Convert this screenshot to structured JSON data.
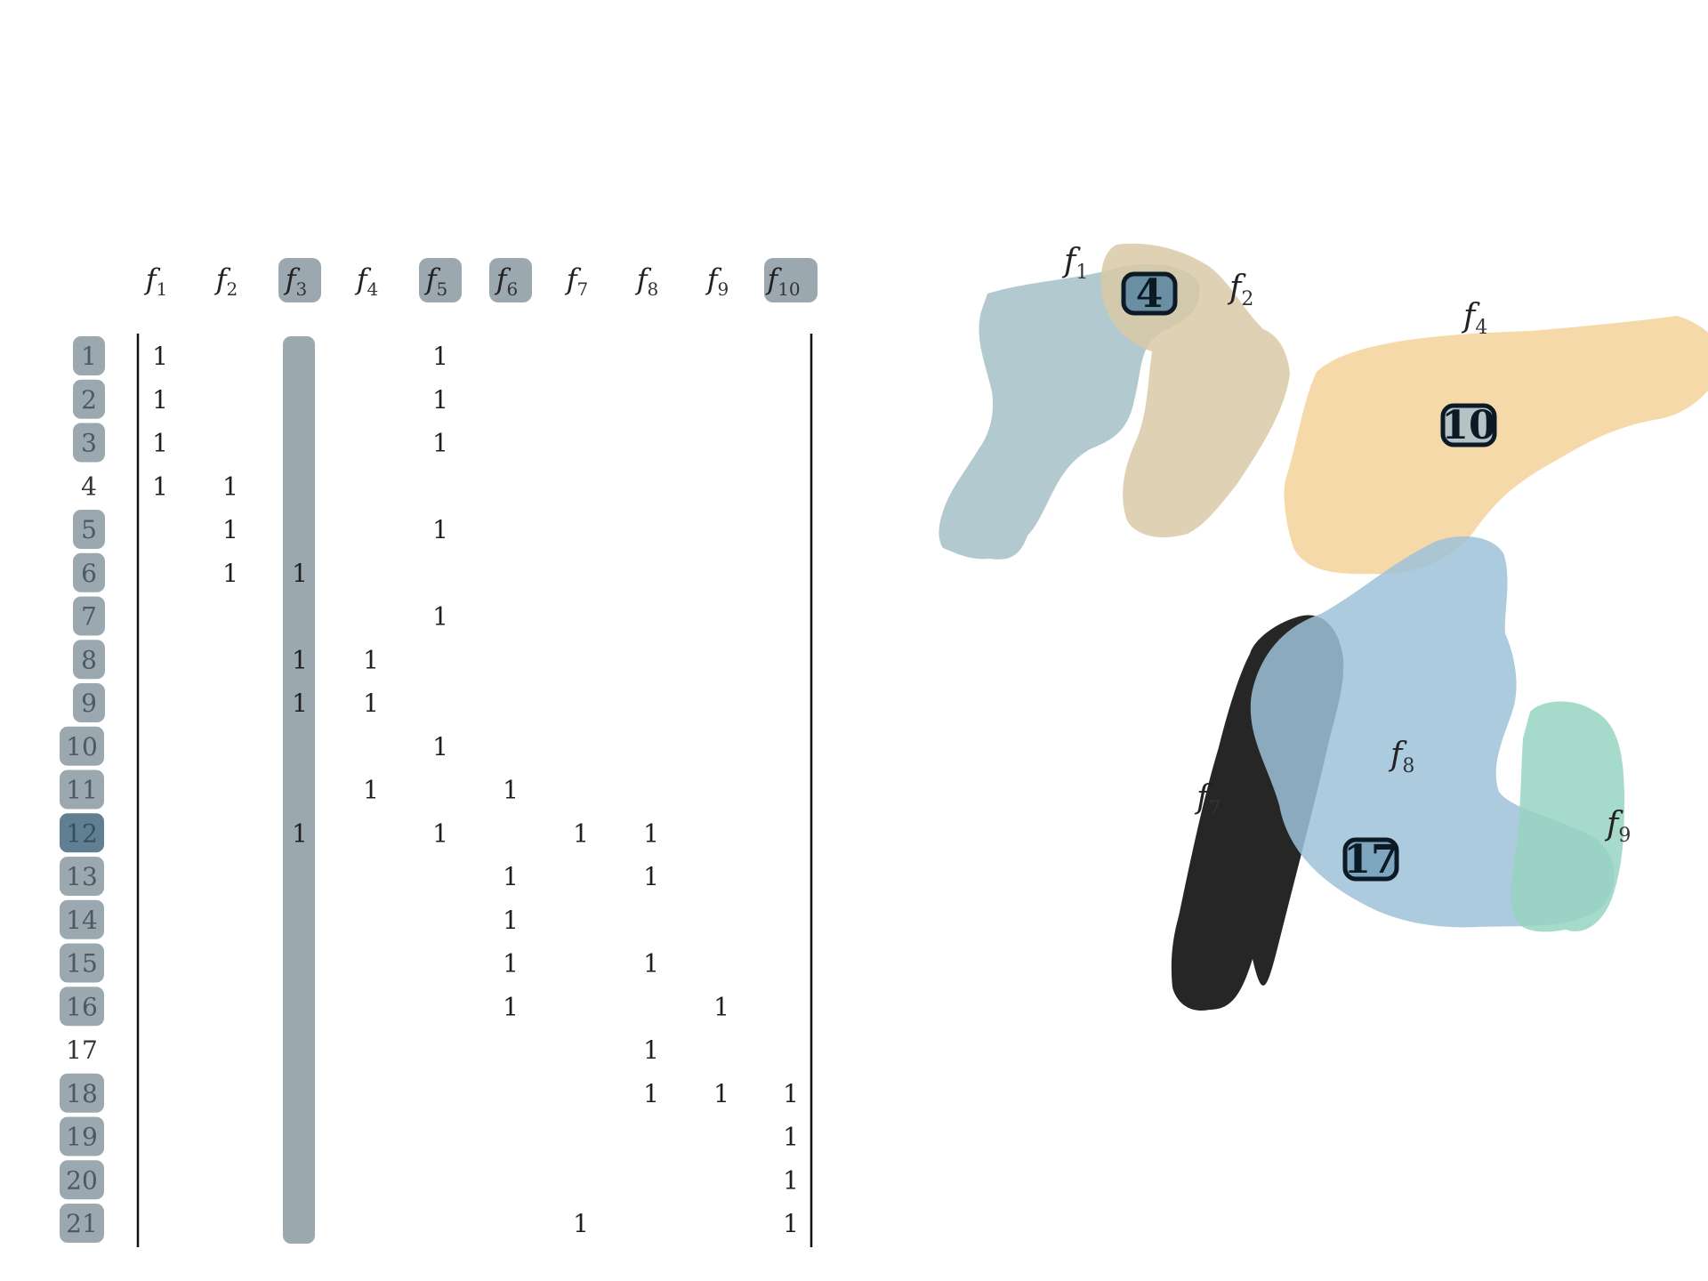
{
  "colors": {
    "highlight_box": "#9ca8b0",
    "highlight_text": "#4a5964",
    "selected_row_box": "#607f92",
    "matrix_text": "#1e1e1e",
    "blob_f1": "#a3bfc7",
    "blob_f2": "#d9c9a6",
    "blob_f4": "#f5d5a0",
    "blob_f7": "#c9d6b0",
    "blob_f8": "#9ec2d8",
    "blob_f9": "#97d5c2",
    "vertex_fill": "#6a8fa2",
    "vertex_border": "#0b1a24"
  },
  "matrix": {
    "columns": [
      {
        "base": "f",
        "sub": "1",
        "highlighted": false
      },
      {
        "base": "f",
        "sub": "2",
        "highlighted": false
      },
      {
        "base": "f",
        "sub": "3",
        "highlighted": true
      },
      {
        "base": "f",
        "sub": "4",
        "highlighted": false
      },
      {
        "base": "f",
        "sub": "5",
        "highlighted": true
      },
      {
        "base": "f",
        "sub": "6",
        "highlighted": true
      },
      {
        "base": "f",
        "sub": "7",
        "highlighted": false
      },
      {
        "base": "f",
        "sub": "8",
        "highlighted": false
      },
      {
        "base": "f",
        "sub": "9",
        "highlighted": false
      },
      {
        "base": "f",
        "sub": "10",
        "highlighted": true
      }
    ],
    "shaded_column": 2,
    "rows": [
      {
        "label": "1",
        "style": "box",
        "ones": [
          0,
          4
        ]
      },
      {
        "label": "2",
        "style": "box",
        "ones": [
          0,
          4
        ]
      },
      {
        "label": "3",
        "style": "box",
        "ones": [
          0,
          4
        ]
      },
      {
        "label": "4",
        "style": "plain",
        "ones": [
          0,
          1
        ]
      },
      {
        "label": "5",
        "style": "box",
        "ones": [
          1,
          4
        ]
      },
      {
        "label": "6",
        "style": "box",
        "ones": [
          1,
          2
        ]
      },
      {
        "label": "7",
        "style": "box",
        "ones": [
          4
        ]
      },
      {
        "label": "8",
        "style": "box",
        "ones": [
          2,
          3
        ]
      },
      {
        "label": "9",
        "style": "box",
        "ones": [
          2,
          3
        ]
      },
      {
        "label": "10",
        "style": "box",
        "ones": [
          4
        ]
      },
      {
        "label": "11",
        "style": "box",
        "ones": [
          3,
          5
        ]
      },
      {
        "label": "12",
        "style": "selected",
        "ones": [
          2,
          4,
          6,
          7
        ]
      },
      {
        "label": "13",
        "style": "box",
        "ones": [
          5,
          7
        ]
      },
      {
        "label": "14",
        "style": "box",
        "ones": [
          5
        ]
      },
      {
        "label": "15",
        "style": "box",
        "ones": [
          5,
          7
        ]
      },
      {
        "label": "16",
        "style": "box",
        "ones": [
          5,
          8
        ]
      },
      {
        "label": "17",
        "style": "plain",
        "ones": [
          7
        ]
      },
      {
        "label": "18",
        "style": "box",
        "ones": [
          7,
          8,
          9
        ]
      },
      {
        "label": "19",
        "style": "box",
        "ones": [
          9
        ]
      },
      {
        "label": "20",
        "style": "box",
        "ones": [
          9
        ]
      },
      {
        "label": "21",
        "style": "box",
        "ones": [
          6,
          9
        ]
      }
    ],
    "cell_value": "1"
  },
  "hypergraph": {
    "edges": [
      {
        "id": "f1",
        "base": "f",
        "sub": "1",
        "color": "#a3bfc7"
      },
      {
        "id": "f2",
        "base": "f",
        "sub": "2",
        "color": "#d9c9a6"
      },
      {
        "id": "f4",
        "base": "f",
        "sub": "4",
        "color": "#f5d5a0"
      },
      {
        "id": "f7",
        "base": "f",
        "sub": "7",
        "color": "#c9d6b0"
      },
      {
        "id": "f8",
        "base": "f",
        "sub": "8",
        "color": "#9ec2d8"
      },
      {
        "id": "f9",
        "base": "f",
        "sub": "9",
        "color": "#97d5c2"
      }
    ],
    "vertices": [
      {
        "id": "v4",
        "label": "4",
        "fill": "#6a8fa2"
      },
      {
        "id": "v10",
        "label": "10",
        "fill": "#b5c3c6"
      },
      {
        "id": "v17",
        "label": "17",
        "fill": "#7fa6bf"
      }
    ]
  }
}
